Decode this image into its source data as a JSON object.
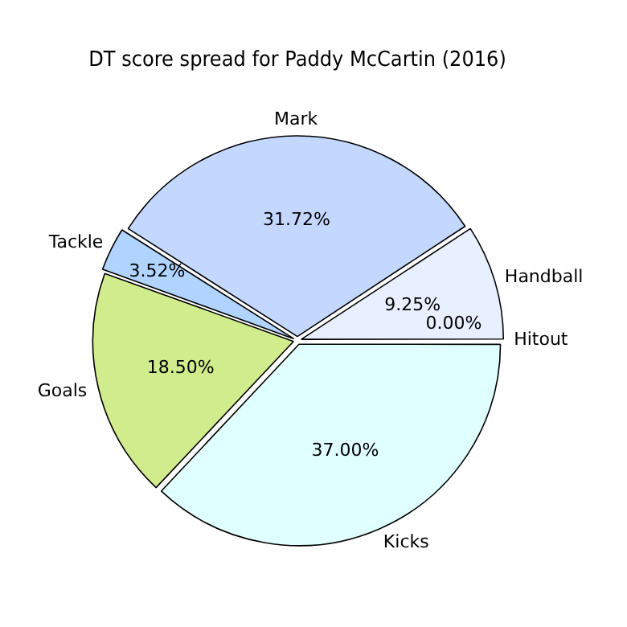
{
  "chart_data": {
    "type": "pie",
    "title": "DT score spread for Paddy McCartin (2016)",
    "categories": [
      "Hitout",
      "Kicks",
      "Goals",
      "Tackle",
      "Mark",
      "Handball"
    ],
    "values": [
      0.0,
      37.0,
      18.5,
      3.52,
      31.72,
      9.25
    ],
    "colors": [
      "#f0f8ff",
      "#e0ffff",
      "#d0ec8c",
      "#b0d4ff",
      "#c4d8ff",
      "#e8f0ff"
    ],
    "value_labels": [
      "0.00%",
      "37.00%",
      "18.50%",
      "3.52%",
      "31.72%",
      "9.25%"
    ],
    "legend": false
  }
}
